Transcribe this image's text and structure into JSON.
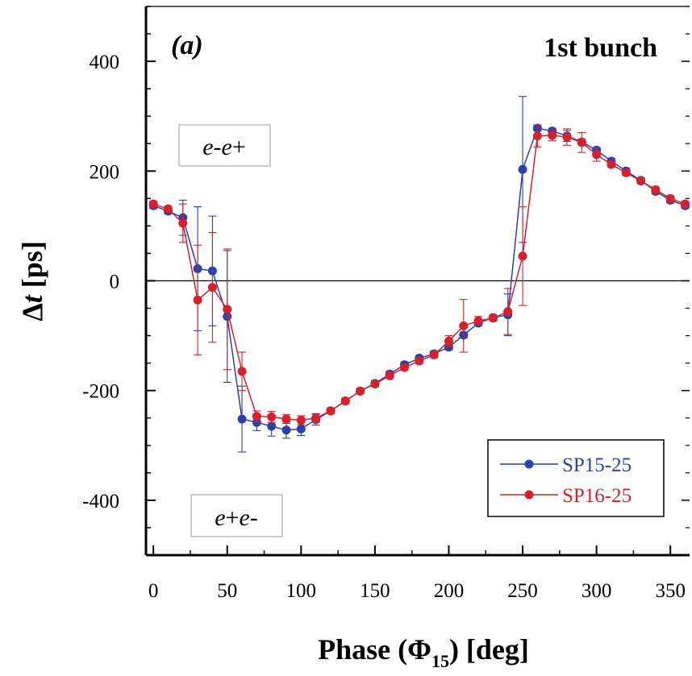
{
  "chart_data": {
    "type": "line",
    "panel_label": "(a)",
    "title": "1st bunch",
    "xlabel_main": "Phase (",
    "xlabel_symbol": "Φ",
    "xlabel_subscript": "15",
    "xlabel_tail": ") [deg]",
    "ylabel_main": "Δ",
    "ylabel_italic": "t",
    "ylabel_tail": " [ps]",
    "xlim": [
      -5,
      363
    ],
    "ylim": [
      -500,
      500
    ],
    "x_ticks": [
      0,
      50,
      100,
      150,
      200,
      250,
      300,
      350
    ],
    "y_ticks": [
      -400,
      -200,
      0,
      200,
      400
    ],
    "x_tick_labels": [
      "0",
      "50",
      "100",
      "150",
      "200",
      "250",
      "300",
      "350"
    ],
    "y_tick_labels": [
      "-400",
      "-200",
      "0",
      "200",
      "400"
    ],
    "grid": false,
    "zero_line": true,
    "annotations": [
      {
        "text_parts": [
          "e",
          "-",
          "e",
          "+"
        ],
        "x": 65,
        "y": 250
      },
      {
        "text_parts": [
          "e",
          "+",
          "e",
          "-"
        ],
        "x": 65,
        "y": -395
      }
    ],
    "legend_position": "bottom-right",
    "series": [
      {
        "name": "SP15-25",
        "color": "#2a3fb0",
        "x": [
          0,
          10,
          20,
          30,
          40,
          50,
          60,
          70,
          80,
          90,
          100,
          110,
          120,
          130,
          140,
          150,
          160,
          170,
          180,
          190,
          200,
          210,
          220,
          230,
          240,
          250,
          260,
          270,
          280,
          290,
          300,
          310,
          320,
          330,
          340,
          350,
          360
        ],
        "y": [
          137,
          127,
          115,
          22,
          18,
          -65,
          -252,
          -258,
          -265,
          -272,
          -270,
          -253,
          -237,
          -219,
          -201,
          -187,
          -170,
          -153,
          -141,
          -133,
          -121,
          -99,
          -77,
          -67,
          -62,
          203,
          278,
          273,
          264,
          253,
          238,
          218,
          200,
          183,
          163,
          147,
          137
        ],
        "err": [
          5,
          5,
          32,
          113,
          100,
          120,
          60,
          15,
          18,
          15,
          12,
          10,
          5,
          5,
          5,
          5,
          5,
          5,
          5,
          5,
          5,
          5,
          5,
          5,
          38,
          133,
          5,
          5,
          10,
          5,
          5,
          5,
          5,
          5,
          5,
          5,
          5
        ]
      },
      {
        "name": "SP16-25",
        "color": "#d9202a",
        "x": [
          0,
          10,
          20,
          30,
          40,
          50,
          60,
          70,
          80,
          90,
          100,
          110,
          120,
          130,
          140,
          150,
          160,
          170,
          180,
          190,
          200,
          210,
          220,
          230,
          240,
          250,
          260,
          270,
          280,
          290,
          300,
          310,
          320,
          330,
          340,
          350,
          360
        ],
        "y": [
          140,
          131,
          105,
          -35,
          -12,
          -52,
          -165,
          -247,
          -248,
          -252,
          -254,
          -250,
          -237,
          -219,
          -201,
          -188,
          -173,
          -158,
          -146,
          -135,
          -110,
          -82,
          -73,
          -68,
          -56,
          45,
          264,
          265,
          262,
          252,
          230,
          212,
          197,
          182,
          166,
          150,
          140
        ],
        "err": [
          5,
          5,
          35,
          100,
          100,
          110,
          35,
          10,
          10,
          8,
          8,
          8,
          5,
          5,
          5,
          5,
          5,
          5,
          5,
          5,
          10,
          48,
          8,
          5,
          42,
          90,
          20,
          10,
          15,
          18,
          12,
          5,
          5,
          5,
          5,
          5,
          5
        ]
      }
    ]
  }
}
